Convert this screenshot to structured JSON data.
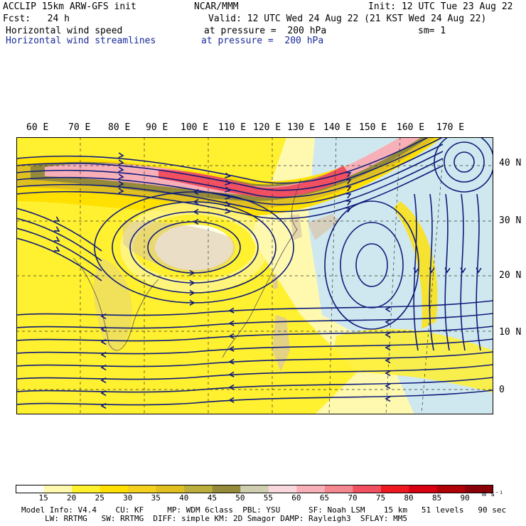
{
  "header": {
    "model": "ACCLIP 15km ARW-GFS init",
    "center": "NCAR/MMM",
    "init": "Init: 12 UTC Tue 23 Aug 22",
    "fcst": "Fcst:   24 h",
    "valid": "Valid: 12 UTC Wed 24 Aug 22 (21 KST Wed 24 Aug 22)",
    "field1": "Horizontal wind speed",
    "field1_level": "at pressure =  200 hPa",
    "smoothing": "sm= 1",
    "field2": "Horizontal wind streamlines",
    "field2_level": "at pressure =  200 hPa"
  },
  "map": {
    "lon_labels": [
      "60 E",
      "70 E",
      "80 E",
      "90 E",
      "100 E",
      "110 E",
      "120 E",
      "130 E",
      "140 E",
      "150 E",
      "160 E",
      "170 E"
    ],
    "lat_labels": [
      "40 N",
      "30 N",
      "20 N",
      "10 N",
      "0"
    ],
    "colors": {
      "ocean": "#cfe8ef",
      "land": "#d8c4a8",
      "streamline": "#0d1b7a",
      "border": "#555555"
    }
  },
  "colorbar": {
    "labels": [
      "15",
      "20",
      "25",
      "30",
      "35",
      "40",
      "45",
      "50",
      "55",
      "60",
      "65",
      "70",
      "75",
      "80",
      "85",
      "90"
    ],
    "unit": "m s⁻¹",
    "colors": [
      "#ffffff",
      "#fff9b0",
      "#fff030",
      "#ffe000",
      "#f4d020",
      "#e0c020",
      "#bcae3c",
      "#948a3a",
      "#d0ceb0",
      "#f8d8dc",
      "#f8b0b8",
      "#f48890",
      "#f05060",
      "#ee1820",
      "#d80010",
      "#b00008",
      "#8a0008"
    ]
  },
  "footer": {
    "line1": "Model Info: V4.4    CU: KF     MP: WDM 6class  PBL: YSU      SF: Noah LSM    15 km   51 levels   90 sec",
    "line2": "     LW: RRTMG   SW: RRTMG  DIFF: simple KM: 2D Smagor DAMP: Rayleigh3  SFLAY: MM5"
  }
}
